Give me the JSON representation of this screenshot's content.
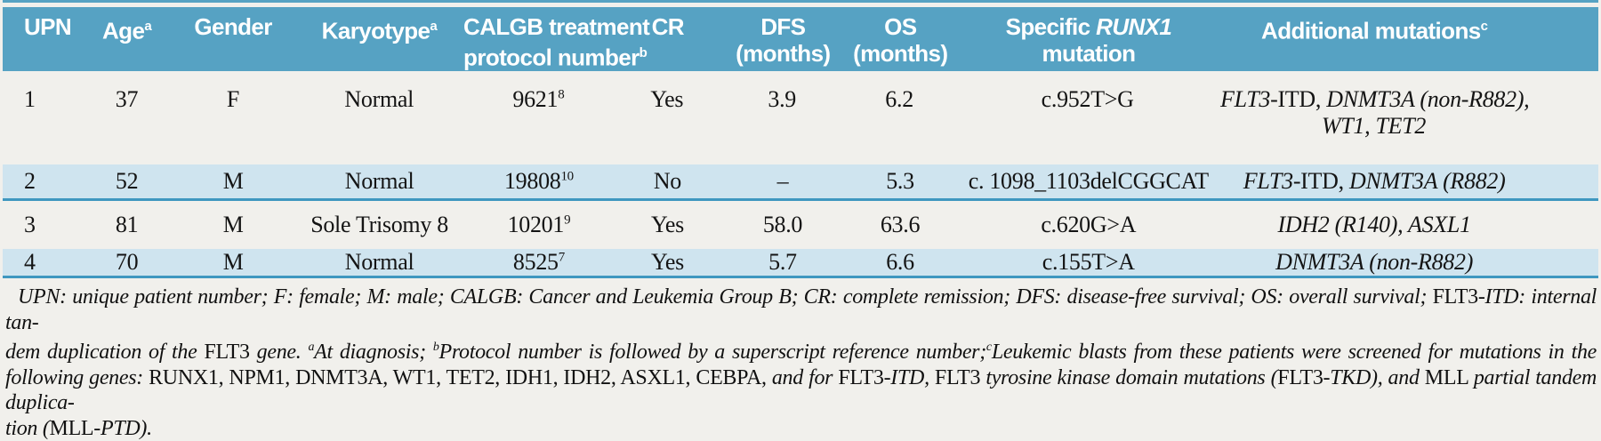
{
  "header": {
    "upn": "UPN",
    "age": "Age",
    "age_sup": "a",
    "gender": "Gender",
    "karyotype": "Karyotype",
    "karyotype_sup": "a",
    "calgb_line1": "CALGB treatment",
    "calgb_line2": "protocol number",
    "calgb_sup": "b",
    "cr": "CR",
    "dfs_line1": "DFS",
    "dfs_line2": "(months)",
    "os_line1": "OS",
    "os_line2": "(months)",
    "runx1_prefix": "Specific ",
    "runx1_gene": "RUNX1",
    "runx1_line2": "mutation",
    "additional": "Additional mutations",
    "additional_sup": "c"
  },
  "table": {
    "rows": [
      {
        "upn": "1",
        "age": "37",
        "gender": "F",
        "karyotype": "Normal",
        "protocol": "9621",
        "protocol_sup": "8",
        "cr": "Yes",
        "dfs": "3.9",
        "os": "6.2",
        "runx1": "c.952T>G",
        "add_i1": "FLT3",
        "add_r1": "-ITD, ",
        "add_i2": "DNMT3A (non-R882),",
        "add_line2": "WT1, TET2"
      },
      {
        "upn": "2",
        "age": "52",
        "gender": "M",
        "karyotype": "Normal",
        "protocol": "19808",
        "protocol_sup": "10",
        "cr": "No",
        "dfs": "–",
        "os": "5.3",
        "runx1": "c. 1098_1103delCGGCAT",
        "add_i1": "FLT3",
        "add_r1": "-ITD, ",
        "add_i2": "DNMT3A (R882)"
      },
      {
        "upn": "3",
        "age": "81",
        "gender": "M",
        "karyotype": "Sole Trisomy 8",
        "protocol": "10201",
        "protocol_sup": "9",
        "cr": "Yes",
        "dfs": "58.0",
        "os": "63.6",
        "runx1": "c.620G>A",
        "add_i1": "IDH2 (R140), ASXL1"
      },
      {
        "upn": "4",
        "age": "70",
        "gender": "M",
        "karyotype": "Normal",
        "protocol": "8525",
        "protocol_sup": "7",
        "cr": "Yes",
        "dfs": "5.7",
        "os": "6.6",
        "runx1": "c.155T>A",
        "add_i1": "DNMT3A (non-R882)"
      }
    ]
  },
  "footnote": {
    "line1": {
      "i1": "UPN: unique patient number; F: female; M: male; CALGB: Cancer and Leukemia Group B; CR: complete remission; DFS: disease-free survival; OS: overall survival; ",
      "r1": "FLT3",
      "i2": "-ITD: internal tan-"
    },
    "line2": {
      "i1": "dem duplication of the ",
      "r1": "FLT3",
      "i2": " gene. ",
      "sup1": "a",
      "i3": "At diagnosis; ",
      "sup2": "b",
      "i4": "Protocol number is followed by a superscript reference number;",
      "sup3": "c",
      "i5": "Leukemic blasts from these patients were screened for mutations in the"
    },
    "line3": {
      "i1": "following genes: ",
      "r1": "RUNX1, NPM1, DNMT3A, WT1, TET2, IDH1, IDH2, ASXL1, CEBPA, ",
      "i2": "and for ",
      "r2": "FLT3",
      "i3": "-ITD, ",
      "r3": "FLT3 ",
      "i4": "tyrosine kinase domain mutations (",
      "r4": "FLT3",
      "i5": "-TKD), and ",
      "r5": "MLL ",
      "i6": "partial tandem duplica-"
    },
    "line4": {
      "i1": "tion (",
      "r1": "MLL",
      "i2": "-PTD)."
    }
  },
  "colors": {
    "header_bg": "#56a2c3",
    "row_alt_bg": "#cfe4ef",
    "rule": "#3f97c0",
    "page_bg": "#f1f0ec"
  }
}
